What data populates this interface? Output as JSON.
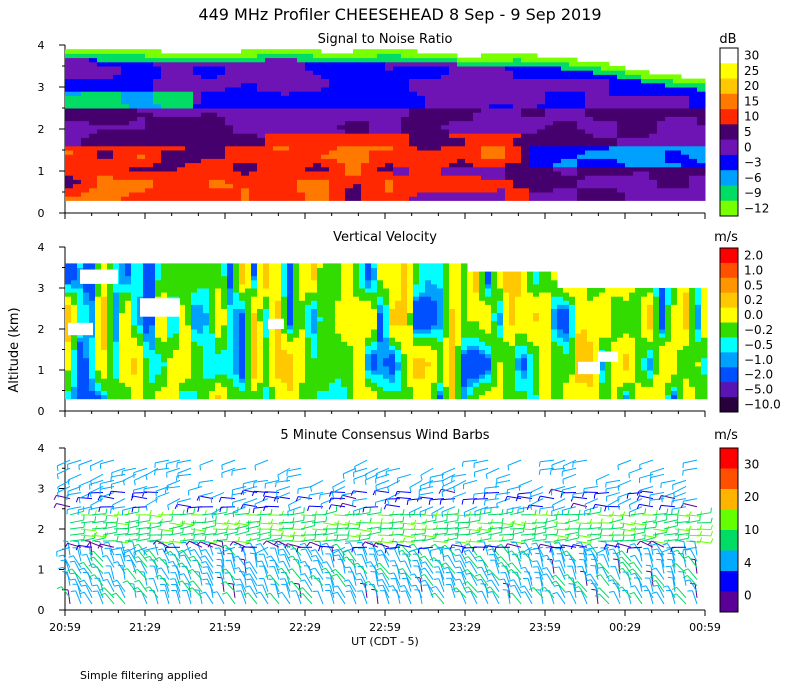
{
  "chart_data": {
    "type": "heatmap",
    "title": "449 MHz Profiler CHEESEHEAD  8 Sep -  9 Sep 2019",
    "xlabel": "UT  (CDT - 5)",
    "ylabel": "Altitude (km)",
    "x_ticks": [
      "20:59",
      "21:29",
      "21:59",
      "22:29",
      "22:59",
      "23:29",
      "23:59",
      "00:29",
      "00:59"
    ],
    "y_ticks": [
      "0",
      "1",
      "2",
      "3",
      "4"
    ],
    "ylim": [
      0,
      4
    ],
    "footnote": "Simple filtering applied",
    "panels": [
      {
        "title": "Signal to Noise Ratio",
        "unit": "dB",
        "colorbar": [
          "30",
          "25",
          "20",
          "15",
          "10",
          "5",
          "0",
          "−3",
          "−6",
          "−9",
          "−12"
        ],
        "colors": [
          "#ffffff",
          "#ffff00",
          "#ffc800",
          "#ff7800",
          "#ff2800",
          "#46006e",
          "#6e14b4",
          "#0000ff",
          "#00a0ff",
          "#00dc64",
          "#78ff00"
        ]
      },
      {
        "title": "Vertical Velocity",
        "unit": "m/s",
        "colorbar": [
          "2.0",
          "1.0",
          "0.5",
          "0.2",
          "0.0",
          "−0.2",
          "−0.5",
          "−1.0",
          "−2.0",
          "−5.0",
          "−10.0"
        ],
        "colors": [
          "#ff0000",
          "#ff5000",
          "#ff9600",
          "#ffc800",
          "#ffff00",
          "#32dc00",
          "#00ffff",
          "#00a0ff",
          "#0050ff",
          "#5a14b4",
          "#28003c"
        ]
      },
      {
        "title": "5 Minute Consensus Wind Barbs",
        "unit": "m/s",
        "colorbar": [
          "30",
          "20",
          "10",
          "4",
          "0"
        ],
        "colors": [
          "#ff0000",
          "#ff5000",
          "#ffb400",
          "#64ff00",
          "#00dc64",
          "#00aaff",
          "#0000ff",
          "#5a0096"
        ]
      }
    ]
  }
}
